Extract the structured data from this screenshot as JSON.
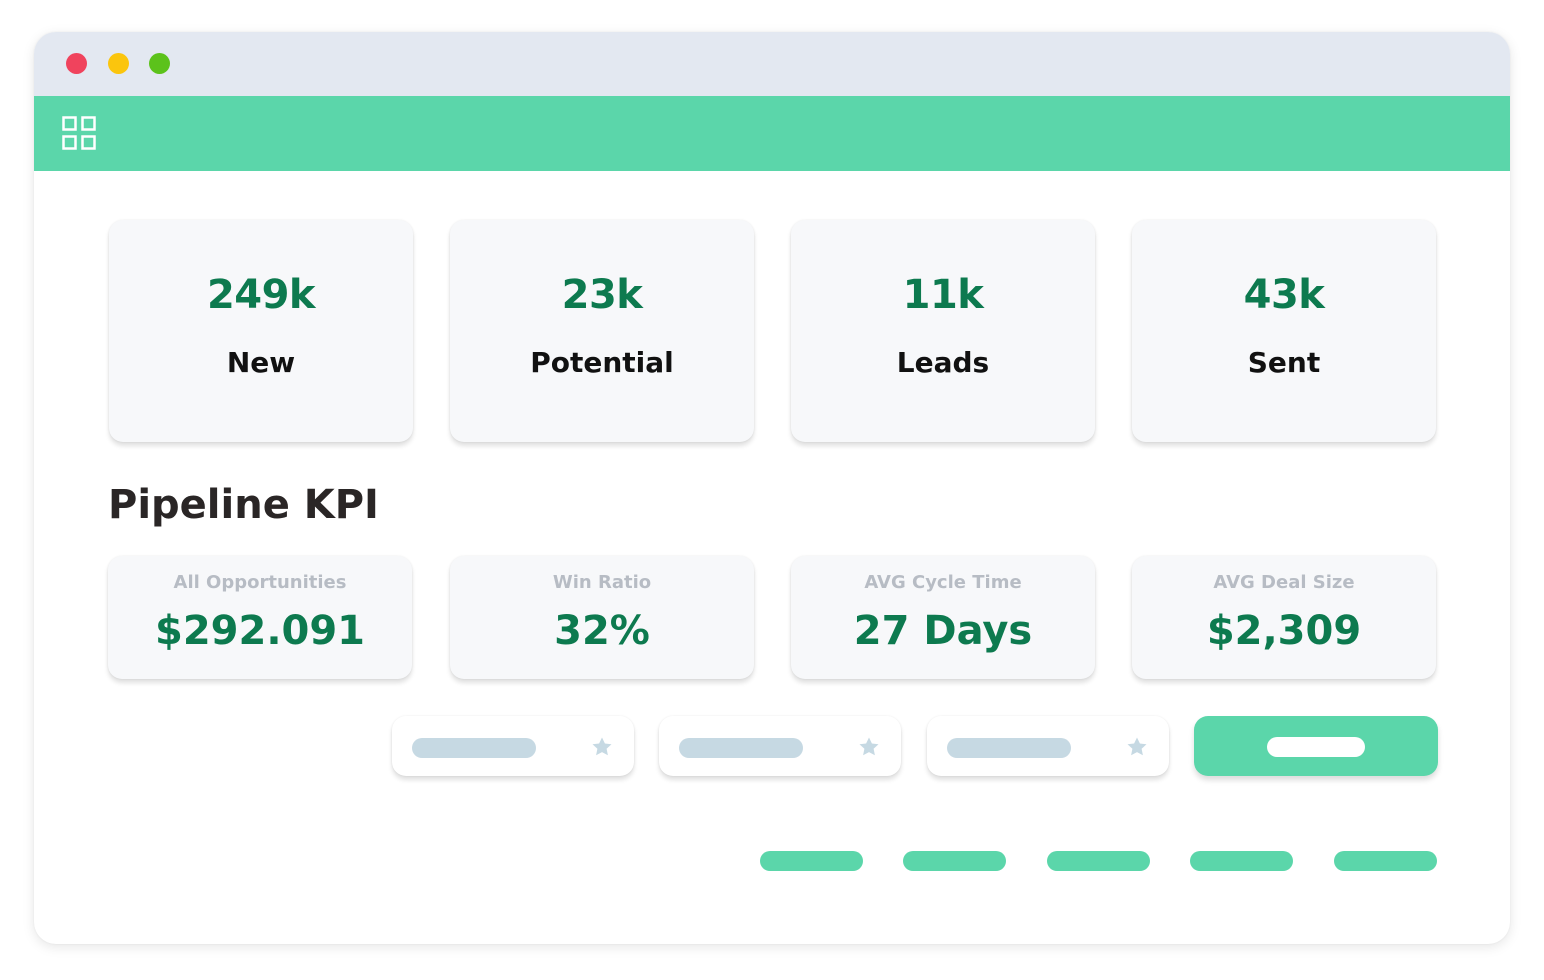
{
  "window": {
    "controls": [
      "close",
      "minimize",
      "maximize"
    ],
    "colors": {
      "close": "#f0435d",
      "minimize": "#fbc50d",
      "maximize": "#5cc21b",
      "titlebar": "#e3e8f1",
      "appbar": "#5bd6aa",
      "accent_value": "#0d7a4f"
    }
  },
  "appbar": {
    "menu_icon": "grid-icon"
  },
  "stats": [
    {
      "value": "249k",
      "label": "New"
    },
    {
      "value": "23k",
      "label": "Potential"
    },
    {
      "value": "11k",
      "label": "Leads"
    },
    {
      "value": "43k",
      "label": "Sent"
    }
  ],
  "pipeline": {
    "title": "Pipeline KPI",
    "kpis": [
      {
        "label": "All Opportunities",
        "value": "$292.091"
      },
      {
        "label": "Win Ratio",
        "value": "32%"
      },
      {
        "label": "AVG Cycle Time",
        "value": "27 Days"
      },
      {
        "label": "AVG Deal Size",
        "value": "$2,309"
      }
    ]
  },
  "filters": {
    "favorite_icon": "star-icon",
    "count": 3
  },
  "pagination": {
    "count": 5
  }
}
